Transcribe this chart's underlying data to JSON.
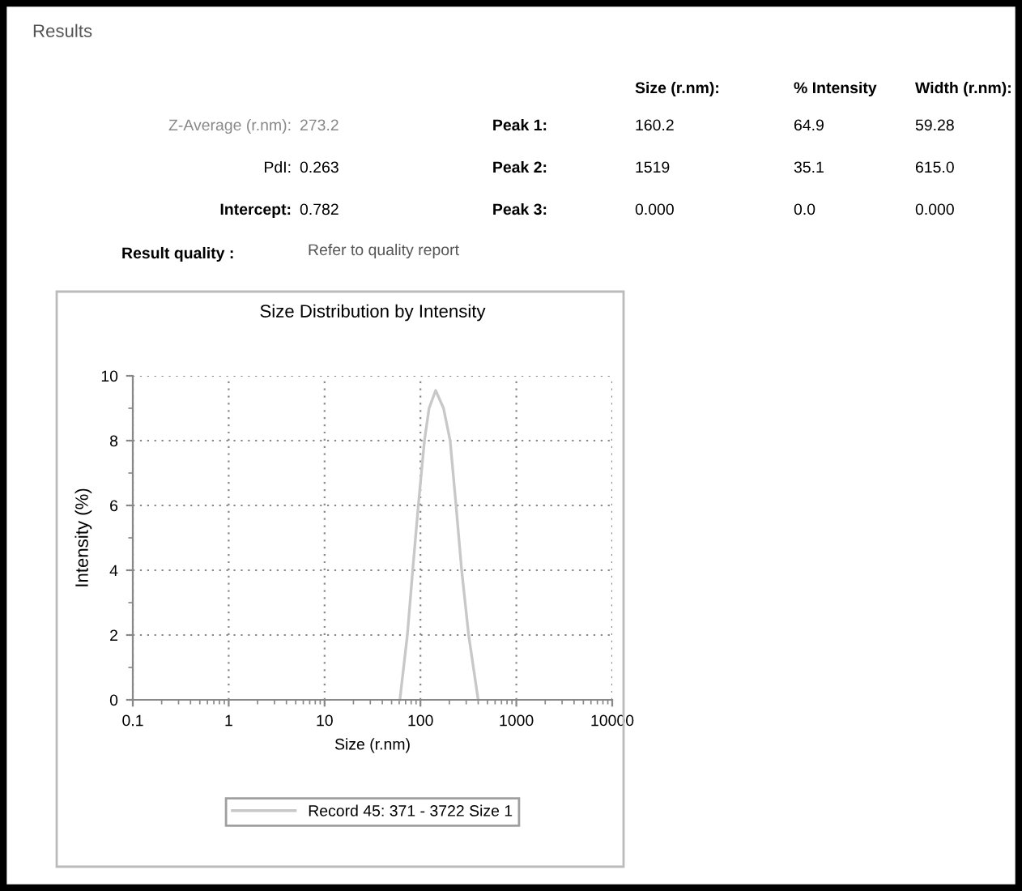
{
  "chart_data": {
    "type": "line",
    "title": "Size Distribution by Intensity",
    "xlabel": "Size (r.nm)",
    "ylabel": "Intensity (%)",
    "log": "x",
    "xlim": [
      0.1,
      10000
    ],
    "xticks": [
      0.1,
      1,
      10,
      100,
      1000,
      10000
    ],
    "ylim": [
      0,
      10
    ],
    "yticks": [
      0,
      2,
      4,
      6,
      8,
      10
    ],
    "grid": true,
    "legend": "bottom",
    "marker": "none",
    "line_style": "solid",
    "series": [
      {
        "name": "Record 45: 371 - 3722 Size 1",
        "color": "#c8c8c8",
        "x": [
          61,
          73,
          83,
          95,
          110,
          123,
          144,
          174,
          204,
          235,
          269,
          318,
          400
        ],
        "values": [
          0,
          2,
          4,
          6,
          8,
          9,
          9.55,
          9,
          8,
          6,
          4,
          2,
          0
        ]
      }
    ],
    "annotations": [
      "Results",
      "Size (r.nm):",
      "% Intensity",
      "Width (r.nm):",
      "Z-Average (r.nm):",
      "273.2",
      "Peak 1:",
      "160.2",
      "64.9",
      "59.28",
      "PdI:",
      "0.263",
      "Peak 2:",
      "1519",
      "35.1",
      "615.0",
      "Intercept:",
      "0.782",
      "Peak 3:",
      "0.000",
      "0.0",
      "0.000",
      "Result quality :",
      "Refer to quality report"
    ]
  }
}
